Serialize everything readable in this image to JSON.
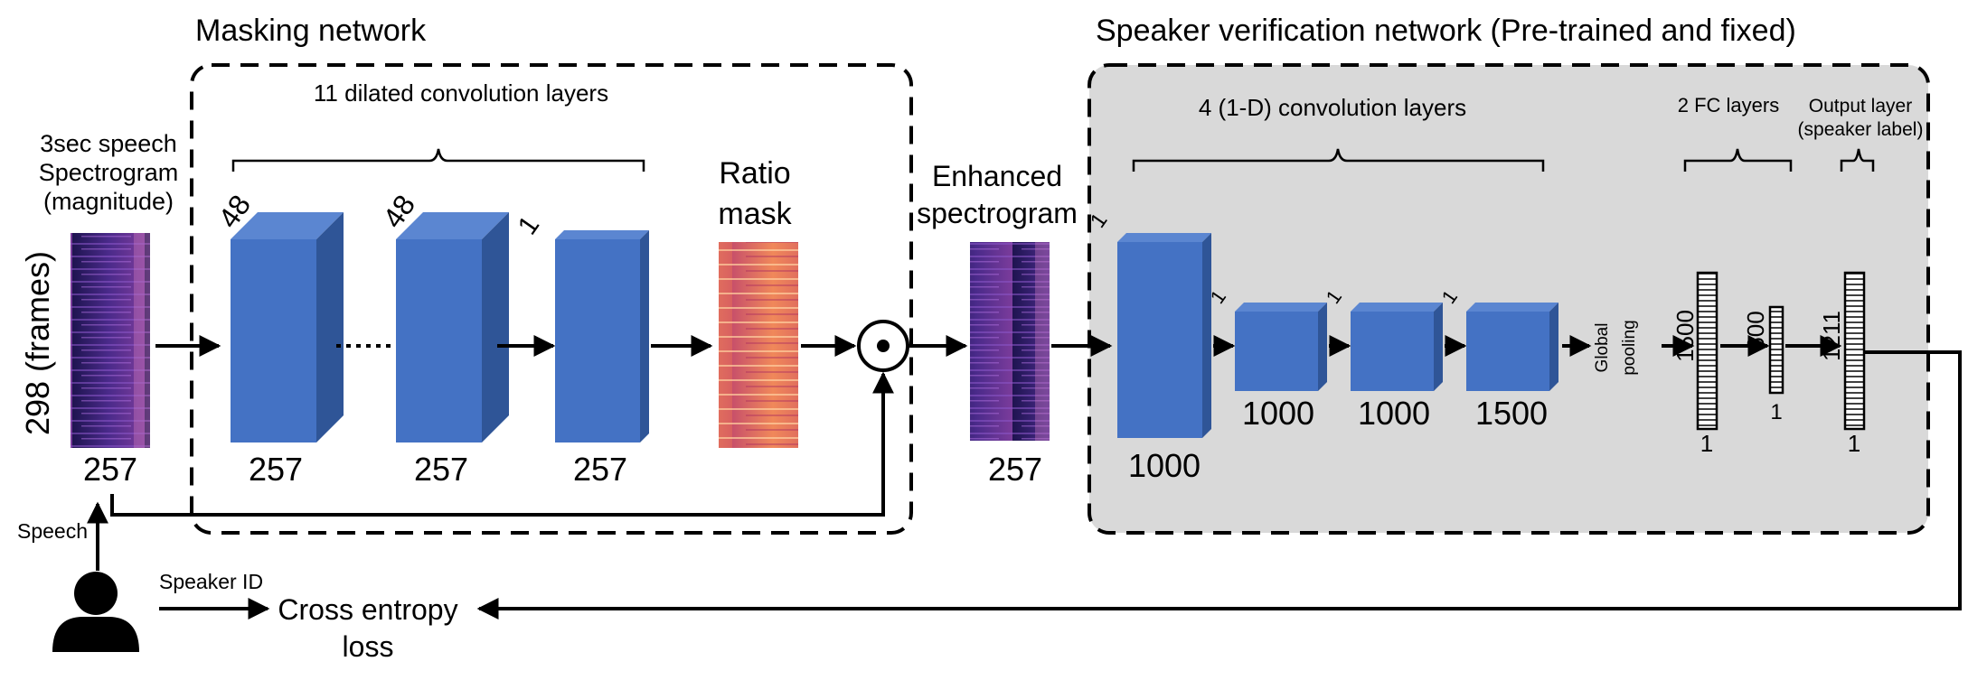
{
  "masking": {
    "title": "Masking network",
    "layers_label": "11 dilated convolution layers",
    "input_label": [
      "3sec speech",
      "Spectrogram",
      "(magnitude)"
    ],
    "frames_label": "298 (frames)",
    "input_dim": "257",
    "block1_depth": "48",
    "block1_dim": "257",
    "block2_depth": "48",
    "block2_dim": "257",
    "block3_depth": "1",
    "block3_dim": "257",
    "mask_label": [
      "Ratio",
      "mask"
    ]
  },
  "enhanced": {
    "label": [
      "Enhanced",
      "spectrogram"
    ],
    "dim": "257"
  },
  "verification": {
    "title": "Speaker verification network (Pre-trained and fixed)",
    "conv_label": "4 (1-D) convolution layers",
    "fc_label": "2 FC layers",
    "output_label": [
      "Output layer",
      "(speaker label)"
    ],
    "conv1_depth": "1",
    "conv1_dim": "1000",
    "conv2_depth": "1",
    "conv2_dim": "1000",
    "conv3_depth": "1",
    "conv3_dim": "1000",
    "conv4_depth": "1",
    "conv4_dim": "1500",
    "pooling_label": [
      "Global",
      "pooling"
    ],
    "fc1_size": "1500",
    "fc1_width": "1",
    "fc2_size": "600",
    "fc2_width": "1",
    "out_size": "1211",
    "out_width": "1"
  },
  "bottom": {
    "speech_label": "Speech",
    "speaker_id_label": "Speaker ID",
    "loss_label": [
      "Cross entropy",
      "loss"
    ]
  },
  "colors": {
    "block_front": "#4472c4",
    "block_top": "#5b86d1",
    "block_side": "#2f5597",
    "verification_bg": "#d9d9d9",
    "spectrogram": "#3a2a7a",
    "mask": "#e8785a"
  },
  "icons": [
    "person-icon",
    "elementwise-product-icon"
  ]
}
